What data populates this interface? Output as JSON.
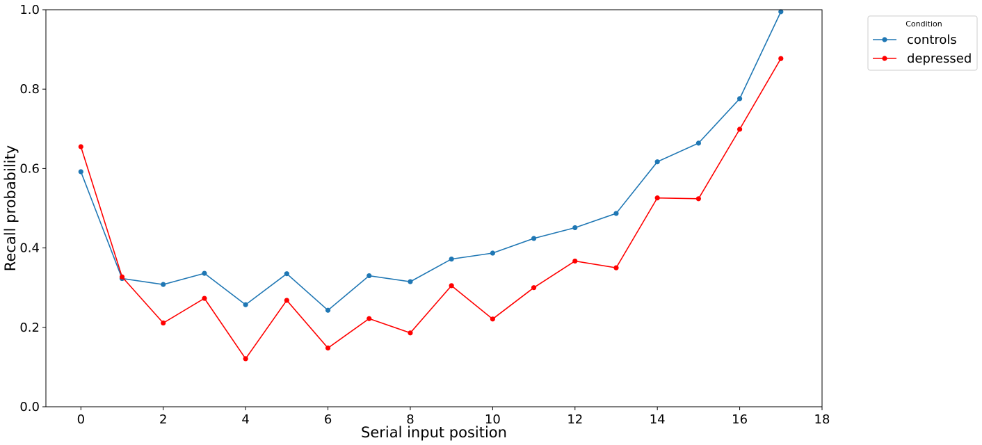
{
  "chart_data": {
    "type": "line",
    "xlabel": "Serial input position",
    "ylabel": "Recall probability",
    "xlim": [
      -0.85,
      18
    ],
    "ylim": [
      0,
      1.0
    ],
    "x_ticks": [
      0,
      2,
      4,
      6,
      8,
      10,
      12,
      14,
      16,
      18
    ],
    "y_ticks": [
      0.0,
      0.2,
      0.4,
      0.6,
      0.8,
      1.0
    ],
    "y_tick_labels": [
      "0.0",
      "0.2",
      "0.4",
      "0.6",
      "0.8",
      "1.0"
    ],
    "grid": false,
    "legend": {
      "title": "Condition",
      "placement": "upper-left outside plot"
    },
    "x": [
      0,
      1,
      2,
      3,
      4,
      5,
      6,
      7,
      8,
      9,
      10,
      11,
      12,
      13,
      14,
      15,
      16,
      17
    ],
    "series": [
      {
        "name": "controls",
        "color": "#1f77b4",
        "values": [
          0.592,
          0.323,
          0.308,
          0.336,
          0.257,
          0.335,
          0.243,
          0.33,
          0.315,
          0.372,
          0.387,
          0.424,
          0.451,
          0.487,
          0.617,
          0.664,
          0.776,
          0.995
        ]
      },
      {
        "name": "depressed",
        "color": "#ff0000",
        "values": [
          0.655,
          0.327,
          0.211,
          0.273,
          0.121,
          0.268,
          0.148,
          0.222,
          0.186,
          0.305,
          0.221,
          0.3,
          0.367,
          0.35,
          0.526,
          0.524,
          0.699,
          0.877
        ]
      }
    ]
  }
}
